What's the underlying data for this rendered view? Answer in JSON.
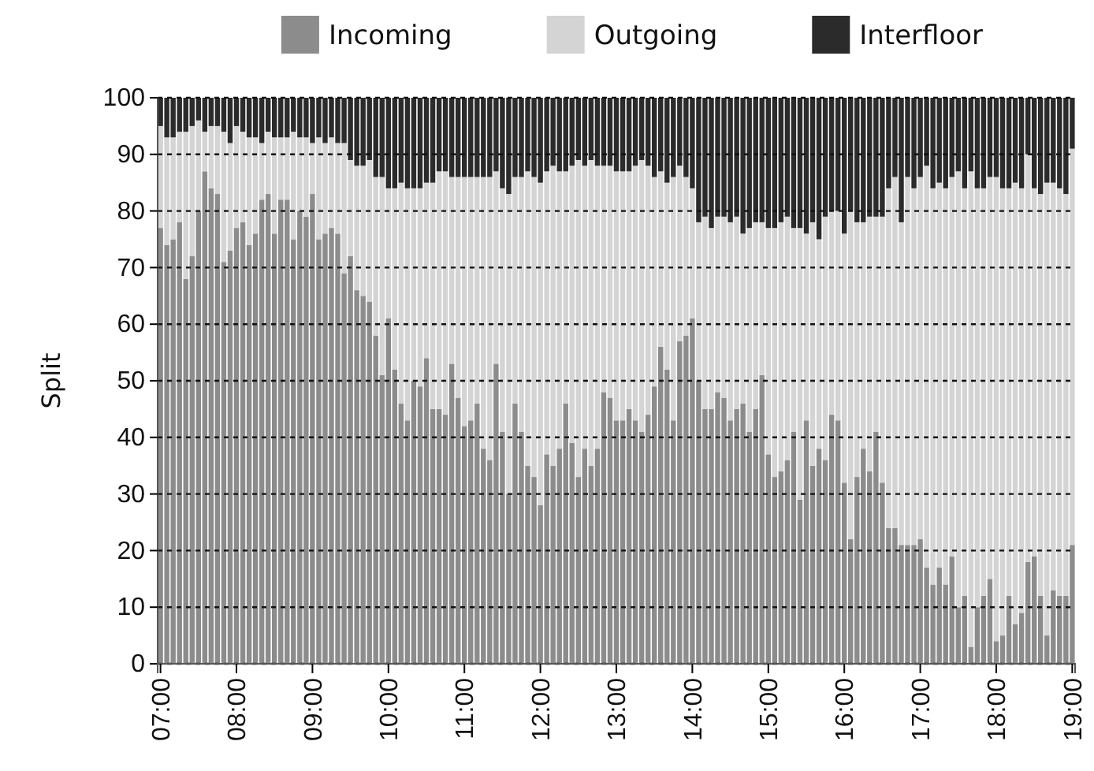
{
  "chart_data": {
    "type": "bar",
    "stacked": true,
    "ylabel": "Split",
    "ylim": [
      0,
      100
    ],
    "yticks": [
      0,
      10,
      20,
      30,
      40,
      50,
      60,
      70,
      80,
      90,
      100
    ],
    "grid": "y",
    "legend": "top",
    "categories": [
      "07:00",
      null,
      null,
      null,
      null,
      null,
      null,
      null,
      null,
      null,
      null,
      null,
      "08:00",
      null,
      null,
      null,
      null,
      null,
      null,
      null,
      null,
      null,
      null,
      null,
      "09:00",
      null,
      null,
      null,
      null,
      null,
      null,
      null,
      null,
      null,
      null,
      null,
      "10:00",
      null,
      null,
      null,
      null,
      null,
      null,
      null,
      null,
      null,
      null,
      null,
      "11:00",
      null,
      null,
      null,
      null,
      null,
      null,
      null,
      null,
      null,
      null,
      null,
      "12:00",
      null,
      null,
      null,
      null,
      null,
      null,
      null,
      null,
      null,
      null,
      null,
      "13:00",
      null,
      null,
      null,
      null,
      null,
      null,
      null,
      null,
      null,
      null,
      null,
      "14:00",
      null,
      null,
      null,
      null,
      null,
      null,
      null,
      null,
      null,
      null,
      null,
      "15:00",
      null,
      null,
      null,
      null,
      null,
      null,
      null,
      null,
      null,
      null,
      null,
      "16:00",
      null,
      null,
      null,
      null,
      null,
      null,
      null,
      null,
      null,
      null,
      null,
      "17:00",
      null,
      null,
      null,
      null,
      null,
      null,
      null,
      null,
      null,
      null,
      null,
      "18:00",
      null,
      null,
      null,
      null,
      null,
      null,
      null,
      null,
      null,
      null,
      null,
      "19:00"
    ],
    "series": [
      {
        "name": "Incoming",
        "color": "#8c8c8c",
        "values": [
          77,
          74,
          75,
          78,
          68,
          72,
          80,
          87,
          84,
          83,
          71,
          73,
          77,
          78,
          74,
          76,
          82,
          83,
          76,
          82,
          82,
          75,
          80,
          79,
          83,
          75,
          76,
          77,
          76,
          69,
          72,
          66,
          65,
          64,
          58,
          51,
          61,
          52,
          46,
          43,
          50,
          49,
          54,
          45,
          45,
          44,
          53,
          47,
          42,
          43,
          46,
          38,
          36,
          53,
          41,
          30,
          46,
          41,
          35,
          33,
          28,
          37,
          35,
          38,
          46,
          39,
          33,
          38,
          35,
          38,
          48,
          47,
          43,
          43,
          45,
          43,
          41,
          44,
          49,
          56,
          52,
          43,
          57,
          58,
          61,
          50,
          45,
          45,
          48,
          47,
          43,
          45,
          46,
          41,
          45,
          51,
          37,
          33,
          34,
          36,
          41,
          29,
          43,
          35,
          38,
          36,
          44,
          43,
          32,
          22,
          33,
          38,
          34,
          41,
          32,
          24,
          24,
          21,
          21,
          21,
          22,
          17,
          14,
          17,
          14,
          19,
          10,
          12,
          3,
          10,
          12,
          15,
          4,
          5,
          12,
          7,
          9,
          18,
          19,
          12,
          5,
          13,
          12,
          12,
          21
        ]
      },
      {
        "name": "Outgoing",
        "color": "#d4d4d4",
        "values": [
          18,
          19,
          18,
          16,
          26,
          23,
          16,
          7,
          11,
          12,
          23,
          19,
          18,
          16,
          19,
          17,
          10,
          11,
          17,
          11,
          11,
          19,
          13,
          14,
          9,
          18,
          16,
          16,
          16,
          23,
          17,
          22,
          23,
          25,
          28,
          35,
          23,
          32,
          39,
          41,
          34,
          35,
          31,
          40,
          42,
          43,
          33,
          39,
          44,
          43,
          40,
          48,
          50,
          34,
          43,
          53,
          40,
          45,
          52,
          53,
          57,
          50,
          53,
          49,
          41,
          49,
          56,
          50,
          54,
          50,
          40,
          41,
          44,
          44,
          42,
          45,
          48,
          44,
          37,
          31,
          33,
          43,
          31,
          28,
          23,
          28,
          34,
          32,
          31,
          32,
          35,
          34,
          30,
          36,
          33,
          27,
          40,
          44,
          44,
          43,
          36,
          48,
          33,
          43,
          37,
          43,
          36,
          37,
          44,
          58,
          45,
          40,
          45,
          38,
          47,
          60,
          62,
          57,
          65,
          63,
          64,
          71,
          70,
          68,
          70,
          67,
          77,
          72,
          84,
          74,
          72,
          71,
          82,
          79,
          72,
          78,
          75,
          72,
          65,
          71,
          80,
          72,
          72,
          71,
          70
        ]
      },
      {
        "name": "Interfloor",
        "color": "#2b2b2b",
        "values": [
          5,
          7,
          7,
          6,
          6,
          5,
          4,
          6,
          5,
          5,
          6,
          8,
          5,
          6,
          7,
          7,
          8,
          6,
          7,
          7,
          7,
          6,
          7,
          7,
          8,
          7,
          8,
          7,
          8,
          8,
          11,
          12,
          12,
          11,
          14,
          14,
          16,
          16,
          15,
          16,
          16,
          16,
          15,
          15,
          13,
          13,
          14,
          14,
          14,
          14,
          14,
          14,
          14,
          13,
          16,
          17,
          14,
          14,
          13,
          14,
          15,
          13,
          12,
          13,
          13,
          12,
          11,
          12,
          11,
          12,
          12,
          12,
          13,
          13,
          13,
          12,
          11,
          12,
          14,
          13,
          15,
          14,
          12,
          14,
          16,
          22,
          21,
          23,
          21,
          21,
          22,
          21,
          24,
          23,
          22,
          22,
          23,
          23,
          22,
          21,
          23,
          23,
          24,
          22,
          25,
          21,
          20,
          20,
          24,
          20,
          22,
          22,
          21,
          21,
          21,
          16,
          14,
          22,
          14,
          16,
          14,
          12,
          16,
          15,
          16,
          14,
          13,
          16,
          13,
          16,
          16,
          14,
          14,
          16,
          16,
          15,
          16,
          10,
          16,
          17,
          15,
          15,
          16,
          17,
          9
        ]
      }
    ]
  }
}
